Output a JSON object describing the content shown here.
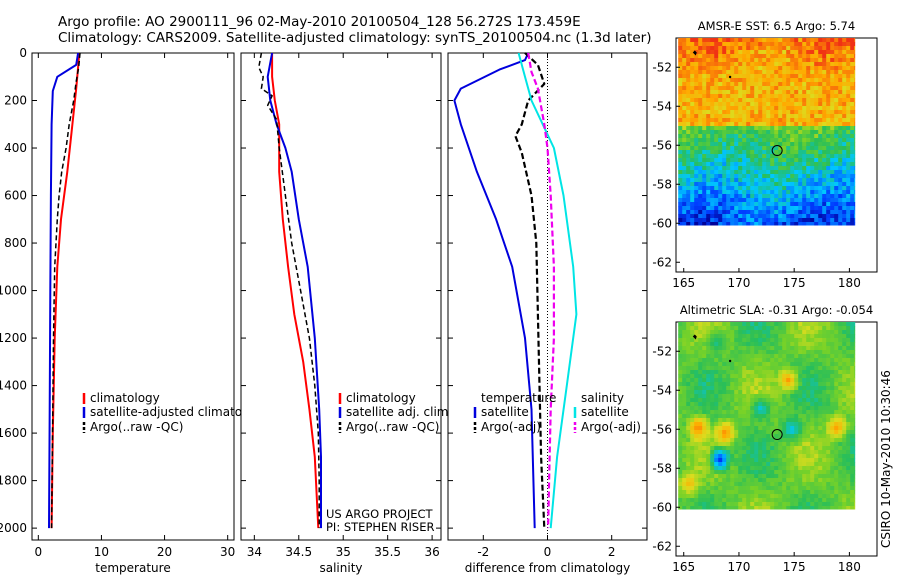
{
  "header": {
    "line1": "Argo profile: AO 2900111_96 02-May-2010 20100504_128 56.272S 173.459E",
    "line2": "Climatology: CARS2009. Satellite-adjusted climatology: synTS_20100504.nc (1.3d later)"
  },
  "side_label": "CSIRO 10-May-2010 10:30:46",
  "project_note": [
    "US ARGO PROJECT",
    "PI: STEPHEN RISER"
  ],
  "colors": {
    "climatology": "#ff0000",
    "satellite": "#0000dd",
    "argo": "#000000",
    "satellite_salinity": "#00e5e5",
    "argo_salinity_adj": "#ee00ee"
  },
  "chart_data": [
    {
      "type": "line",
      "xlabel": "temperature",
      "xlim": [
        -1,
        31
      ],
      "xticks": [
        0,
        10,
        20,
        30
      ],
      "ylim": [
        2050,
        0
      ],
      "yticks": [
        0,
        200,
        400,
        600,
        800,
        1000,
        1200,
        1400,
        1600,
        1800,
        2000
      ],
      "legend": [
        "climatology",
        "satellite-adjusted climatology",
        "Argo(..raw -QC)"
      ],
      "series": [
        {
          "name": "climatology",
          "color": "#ff0000",
          "width": 2,
          "dash": "",
          "points": [
            [
              6.5,
              0
            ],
            [
              6.3,
              60
            ],
            [
              6.0,
              150
            ],
            [
              5.4,
              300
            ],
            [
              4.6,
              500
            ],
            [
              3.6,
              700
            ],
            [
              3.0,
              900
            ],
            [
              2.6,
              1200
            ],
            [
              2.3,
              1600
            ],
            [
              2.1,
              2000
            ]
          ]
        },
        {
          "name": "satellite-adjusted climatology",
          "color": "#0000dd",
          "width": 2,
          "dash": "",
          "points": [
            [
              6.3,
              0
            ],
            [
              6.0,
              50
            ],
            [
              3.0,
              100
            ],
            [
              2.3,
              160
            ],
            [
              2.1,
              300
            ],
            [
              2.0,
              600
            ],
            [
              1.9,
              1000
            ],
            [
              1.8,
              1500
            ],
            [
              1.7,
              2000
            ]
          ]
        },
        {
          "name": "Argo(..raw -QC)",
          "color": "#000000",
          "width": 1.5,
          "dash": "5,3",
          "points": [
            [
              6.6,
              0
            ],
            [
              6.4,
              60
            ],
            [
              6.0,
              120
            ],
            [
              5.6,
              200
            ],
            [
              4.9,
              300
            ],
            [
              4.4,
              400
            ],
            [
              3.7,
              500
            ],
            [
              3.3,
              600
            ],
            [
              3.0,
              700
            ],
            [
              2.6,
              900
            ],
            [
              2.4,
              1200
            ],
            [
              2.3,
              1500
            ],
            [
              2.1,
              2000
            ]
          ]
        }
      ]
    },
    {
      "type": "line",
      "xlabel": "salinity",
      "xlim": [
        33.85,
        36.1
      ],
      "xticks": [
        34,
        34.5,
        35,
        35.5,
        36
      ],
      "xticklabels": [
        "34",
        "34.5",
        "35",
        "35.5",
        "36"
      ],
      "ylim": [
        2050,
        0
      ],
      "legend": [
        "climatology",
        "satellite adj. clim.",
        "Argo(..raw -QC)"
      ],
      "series": [
        {
          "name": "climatology",
          "color": "#ff0000",
          "width": 2,
          "dash": "",
          "points": [
            [
              34.2,
              0
            ],
            [
              34.2,
              100
            ],
            [
              34.23,
              200
            ],
            [
              34.28,
              300
            ],
            [
              34.28,
              500
            ],
            [
              34.32,
              700
            ],
            [
              34.38,
              900
            ],
            [
              34.45,
              1100
            ],
            [
              34.55,
              1300
            ],
            [
              34.62,
              1500
            ],
            [
              34.68,
              1700
            ],
            [
              34.72,
              2000
            ]
          ]
        },
        {
          "name": "satellite adj. clim.",
          "color": "#0000dd",
          "width": 2,
          "dash": "",
          "points": [
            [
              34.2,
              0
            ],
            [
              34.15,
              100
            ],
            [
              34.18,
              200
            ],
            [
              34.25,
              300
            ],
            [
              34.35,
              400
            ],
            [
              34.42,
              500
            ],
            [
              34.5,
              700
            ],
            [
              34.6,
              900
            ],
            [
              34.68,
              1200
            ],
            [
              34.73,
              1500
            ],
            [
              34.75,
              1700
            ],
            [
              34.75,
              2000
            ]
          ]
        },
        {
          "name": "Argo(..raw -QC)",
          "color": "#000000",
          "width": 1.5,
          "dash": "5,3",
          "points": [
            [
              34.08,
              0
            ],
            [
              34.05,
              60
            ],
            [
              34.1,
              100
            ],
            [
              34.08,
              150
            ],
            [
              34.2,
              180
            ],
            [
              34.15,
              220
            ],
            [
              34.25,
              280
            ],
            [
              34.28,
              400
            ],
            [
              34.35,
              600
            ],
            [
              34.42,
              800
            ],
            [
              34.52,
              1000
            ],
            [
              34.62,
              1200
            ],
            [
              34.68,
              1400
            ],
            [
              34.72,
              1600
            ],
            [
              34.73,
              1800
            ],
            [
              34.73,
              2000
            ]
          ]
        }
      ]
    },
    {
      "type": "line",
      "xlabel": "difference from climatology",
      "xlim": [
        -3.1,
        3.1
      ],
      "xticks": [
        -2,
        0,
        2
      ],
      "ylim": [
        2050,
        0
      ],
      "legend": [
        "temperature",
        "satellite",
        "Argo(-adj)",
        "salinity",
        "satellite",
        "Argo(-adj)"
      ],
      "series": [
        {
          "name": "temperature satellite",
          "color": "#0000dd",
          "width": 2,
          "dash": "",
          "points": [
            [
              -0.6,
              0
            ],
            [
              -0.7,
              30
            ],
            [
              -1.5,
              70
            ],
            [
              -2.7,
              150
            ],
            [
              -2.9,
              200
            ],
            [
              -2.7,
              300
            ],
            [
              -2.2,
              500
            ],
            [
              -1.6,
              700
            ],
            [
              -1.1,
              900
            ],
            [
              -0.7,
              1200
            ],
            [
              -0.5,
              1500
            ],
            [
              -0.4,
              2000
            ]
          ]
        },
        {
          "name": "temperature Argo(-adj)",
          "color": "#000000",
          "width": 2.2,
          "dash": "6,3",
          "points": [
            [
              -0.7,
              0
            ],
            [
              -0.3,
              50
            ],
            [
              -0.1,
              130
            ],
            [
              -0.6,
              200
            ],
            [
              -0.8,
              300
            ],
            [
              -1.0,
              350
            ],
            [
              -0.8,
              420
            ],
            [
              -0.5,
              600
            ],
            [
              -0.35,
              800
            ],
            [
              -0.3,
              1100
            ],
            [
              -0.25,
              1400
            ],
            [
              -0.2,
              1700
            ],
            [
              -0.1,
              2000
            ]
          ]
        },
        {
          "name": "salinity satellite",
          "color": "#00e5e5",
          "width": 2,
          "dash": "",
          "points": [
            [
              -0.9,
              0
            ],
            [
              -0.7,
              100
            ],
            [
              -0.5,
              200
            ],
            [
              0.2,
              400
            ],
            [
              0.5,
              600
            ],
            [
              0.8,
              900
            ],
            [
              0.9,
              1100
            ],
            [
              0.6,
              1400
            ],
            [
              0.3,
              1700
            ],
            [
              0.1,
              2000
            ]
          ]
        },
        {
          "name": "salinity Argo(-adj)",
          "color": "#ee00ee",
          "width": 2.2,
          "dash": "6,3",
          "points": [
            [
              -0.6,
              0
            ],
            [
              -0.5,
              80
            ],
            [
              -0.3,
              150
            ],
            [
              -0.1,
              300
            ],
            [
              0.0,
              400
            ],
            [
              0.1,
              600
            ],
            [
              0.2,
              900
            ],
            [
              0.2,
              1200
            ],
            [
              0.1,
              1500
            ],
            [
              0.05,
              1800
            ],
            [
              0.02,
              2000
            ]
          ]
        }
      ]
    },
    {
      "type": "heatmap",
      "title": "AMSR-E SST: 6.5  Argo: 5.74",
      "xlim": [
        164.3,
        182.5
      ],
      "ylim": [
        -62.5,
        -50.5
      ],
      "xticks": [
        165,
        170,
        175,
        180
      ],
      "yticks": [
        -52,
        -54,
        -56,
        -58,
        -60,
        -62
      ],
      "data_extent": {
        "lon": [
          164.5,
          180.5
        ],
        "lat": [
          -60.1,
          -50.5
        ]
      },
      "marker": {
        "lon": 173.46,
        "lat": -56.27
      }
    },
    {
      "type": "heatmap",
      "title": "Altimetric SLA: -0.31  Argo: -0.054",
      "xlim": [
        164.3,
        182.5
      ],
      "ylim": [
        -62.5,
        -50.5
      ],
      "xticks": [
        165,
        170,
        175,
        180
      ],
      "yticks": [
        -52,
        -54,
        -56,
        -58,
        -60,
        -62
      ],
      "data_extent": {
        "lon": [
          164.5,
          180.5
        ],
        "lat": [
          -60.1,
          -50.5
        ]
      },
      "marker": {
        "lon": 173.46,
        "lat": -56.27
      }
    }
  ]
}
